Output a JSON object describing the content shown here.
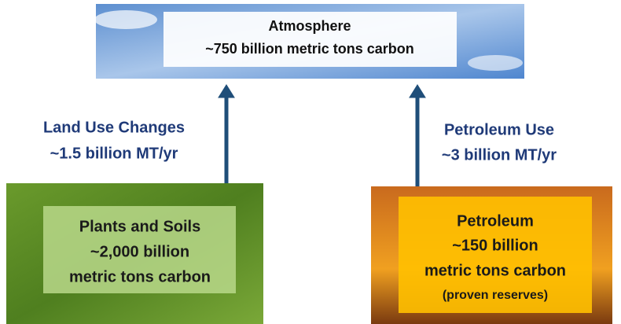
{
  "atmosphere": {
    "lines": [
      "Atmosphere",
      "~750 billion metric tons carbon"
    ]
  },
  "flows": [
    {
      "lines": [
        "Land Use Changes",
        "~1.5 billion MT/yr"
      ]
    },
    {
      "lines": [
        "Petroleum Use",
        "~3 billion MT/yr"
      ]
    }
  ],
  "sources": [
    {
      "lines": [
        "Plants and Soils",
        "~2,000 billion",
        "metric tons carbon"
      ]
    },
    {
      "lines": [
        "Petroleum",
        "~150 billion",
        "metric tons carbon",
        "(proven reserves)"
      ]
    }
  ]
}
